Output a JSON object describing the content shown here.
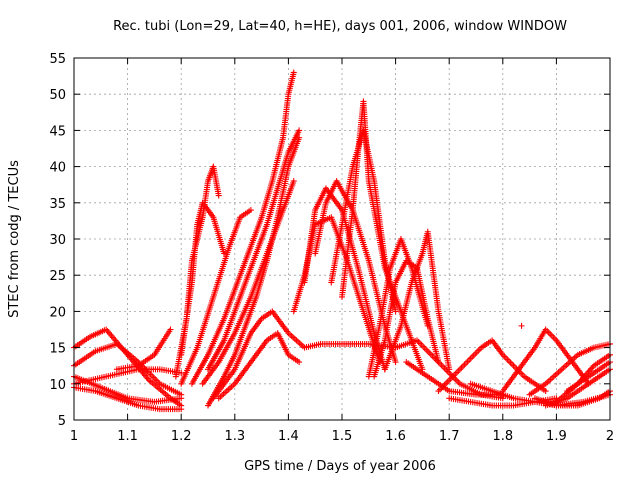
{
  "chart_data": {
    "type": "scatter",
    "title": "Rec. tubi (Lon=29, Lat=40, h=HE), days 001, 2006, window WINDOW",
    "xlabel": "GPS time / Days of year 2006",
    "ylabel": "STEC from codg / TECUs",
    "xlim": [
      1,
      2
    ],
    "ylim": [
      5,
      55
    ],
    "xticks": [
      "1",
      "1.1",
      "1.2",
      "1.3",
      "1.4",
      "1.5",
      "1.6",
      "1.7",
      "1.8",
      "1.9",
      "2"
    ],
    "yticks": [
      "5",
      "10",
      "15",
      "20",
      "25",
      "30",
      "35",
      "40",
      "45",
      "50",
      "55"
    ],
    "grid": true,
    "marker": "plus",
    "color": "#ff0000",
    "series": [
      {
        "x": [
          1.0,
          1.03,
          1.06,
          1.1,
          1.14,
          1.18,
          1.2
        ],
        "y": [
          15.0,
          16.5,
          17.5,
          14.0,
          10.5,
          8.0,
          7.0
        ]
      },
      {
        "x": [
          1.0,
          1.04,
          1.08,
          1.12,
          1.16,
          1.2
        ],
        "y": [
          12.5,
          14.5,
          15.5,
          13.0,
          10.0,
          8.5
        ]
      },
      {
        "x": [
          1.0,
          1.05,
          1.1,
          1.15,
          1.2
        ],
        "y": [
          11.0,
          9.5,
          8.0,
          7.5,
          8.0
        ]
      },
      {
        "x": [
          1.0,
          1.04,
          1.08,
          1.12,
          1.16,
          1.2
        ],
        "y": [
          9.5,
          9.0,
          8.0,
          7.0,
          6.5,
          6.5
        ]
      },
      {
        "x": [
          1.0,
          1.06,
          1.12,
          1.16,
          1.2
        ],
        "y": [
          10.0,
          11.0,
          12.0,
          12.0,
          11.5
        ]
      },
      {
        "x": [
          1.08,
          1.12,
          1.15,
          1.18
        ],
        "y": [
          12.0,
          12.5,
          14.0,
          17.5
        ]
      },
      {
        "x": [
          1.19,
          1.21,
          1.22,
          1.24,
          1.25,
          1.26,
          1.27
        ],
        "y": [
          11.0,
          19.0,
          27.0,
          33.0,
          38.0,
          40.0,
          36.0
        ]
      },
      {
        "x": [
          1.2,
          1.22,
          1.23,
          1.24,
          1.26,
          1.28
        ],
        "y": [
          14.0,
          24.0,
          32.0,
          35.0,
          33.0,
          28.0
        ]
      },
      {
        "x": [
          1.2,
          1.23,
          1.26,
          1.29,
          1.31,
          1.33
        ],
        "y": [
          10.0,
          15.0,
          22.0,
          29.0,
          33.0,
          34.0
        ]
      },
      {
        "x": [
          1.22,
          1.25,
          1.28,
          1.31,
          1.33,
          1.35,
          1.37,
          1.39,
          1.4,
          1.41
        ],
        "y": [
          10.0,
          14.0,
          19.0,
          25.0,
          29.0,
          33.0,
          38.0,
          44.0,
          50.0,
          53.0
        ]
      },
      {
        "x": [
          1.25,
          1.28,
          1.31,
          1.34,
          1.36,
          1.38,
          1.4,
          1.42
        ],
        "y": [
          12.0,
          16.0,
          22.0,
          28.0,
          32.0,
          37.0,
          42.0,
          45.0
        ]
      },
      {
        "x": [
          1.24,
          1.27,
          1.3,
          1.33,
          1.36,
          1.39,
          1.41
        ],
        "y": [
          10.0,
          13.0,
          17.0,
          22.0,
          28.0,
          34.0,
          38.0
        ]
      },
      {
        "x": [
          1.25,
          1.28,
          1.3,
          1.32,
          1.34,
          1.36,
          1.38,
          1.4,
          1.42
        ],
        "y": [
          7.0,
          11.0,
          14.0,
          18.0,
          22.0,
          27.0,
          33.0,
          40.0,
          44.0
        ]
      },
      {
        "x": [
          1.26,
          1.3,
          1.33,
          1.35,
          1.37,
          1.4,
          1.43,
          1.46,
          1.5,
          1.55,
          1.6
        ],
        "y": [
          8.0,
          12.0,
          17.0,
          19.0,
          20.0,
          17.0,
          15.0,
          15.5,
          15.5,
          15.5,
          15.0
        ]
      },
      {
        "x": [
          1.27,
          1.3,
          1.33,
          1.36,
          1.38,
          1.4,
          1.42
        ],
        "y": [
          8.0,
          10.0,
          13.0,
          16.0,
          17.0,
          14.0,
          13.0
        ]
      },
      {
        "x": [
          1.41,
          1.43,
          1.45,
          1.48,
          1.51,
          1.54,
          1.57
        ],
        "y": [
          20.0,
          25.0,
          32.0,
          33.0,
          27.0,
          20.0,
          13.0
        ]
      },
      {
        "x": [
          1.43,
          1.45,
          1.47,
          1.5,
          1.53,
          1.56,
          1.58
        ],
        "y": [
          24.0,
          34.0,
          37.0,
          34.0,
          26.0,
          17.0,
          12.0
        ]
      },
      {
        "x": [
          1.45,
          1.47,
          1.49,
          1.52,
          1.55,
          1.58,
          1.6
        ],
        "y": [
          28.0,
          35.0,
          38.0,
          34.0,
          27.0,
          18.0,
          13.0
        ]
      },
      {
        "x": [
          1.48,
          1.5,
          1.52,
          1.54,
          1.56,
          1.58,
          1.6
        ],
        "y": [
          24.0,
          32.0,
          40.0,
          45.0,
          38.0,
          27.0,
          20.0
        ]
      },
      {
        "x": [
          1.5,
          1.52,
          1.53,
          1.54,
          1.55,
          1.58,
          1.62,
          1.65
        ],
        "y": [
          22.0,
          34.0,
          42.0,
          49.0,
          38.0,
          26.0,
          18.0,
          12.0
        ]
      },
      {
        "x": [
          1.55,
          1.57,
          1.59,
          1.61,
          1.63,
          1.66
        ],
        "y": [
          11.0,
          18.0,
          26.0,
          30.0,
          26.0,
          18.0
        ]
      },
      {
        "x": [
          1.56,
          1.58,
          1.6,
          1.62,
          1.64,
          1.66,
          1.68
        ],
        "y": [
          11.0,
          16.0,
          24.0,
          27.0,
          26.0,
          19.0,
          13.0
        ]
      },
      {
        "x": [
          1.58,
          1.61,
          1.63,
          1.65,
          1.66,
          1.68,
          1.7
        ],
        "y": [
          12.0,
          18.0,
          24.0,
          28.0,
          31.0,
          20.0,
          12.0
        ]
      },
      {
        "x": [
          1.6,
          1.64,
          1.68,
          1.72,
          1.76,
          1.8
        ],
        "y": [
          15.0,
          16.0,
          13.0,
          10.0,
          8.5,
          8.0
        ]
      },
      {
        "x": [
          1.62,
          1.66,
          1.7,
          1.75,
          1.8
        ],
        "y": [
          13.0,
          11.0,
          9.0,
          8.5,
          8.5
        ]
      },
      {
        "x": [
          1.68,
          1.72,
          1.76,
          1.78,
          1.8,
          1.84,
          1.88
        ],
        "y": [
          9.0,
          12.0,
          15.0,
          16.0,
          14.0,
          11.0,
          9.0
        ]
      },
      {
        "x": [
          1.7,
          1.74,
          1.78,
          1.82,
          1.86,
          1.9
        ],
        "y": [
          8.0,
          7.5,
          7.0,
          7.0,
          7.5,
          8.0
        ]
      },
      {
        "x": [
          1.74,
          1.78,
          1.82,
          1.86,
          1.9,
          1.95,
          2.0
        ],
        "y": [
          10.0,
          9.0,
          8.0,
          7.5,
          7.0,
          7.5,
          8.5
        ]
      },
      {
        "x": [
          1.8,
          1.83,
          1.86,
          1.88,
          1.9,
          1.93,
          1.96
        ],
        "y": [
          9.0,
          12.0,
          15.0,
          17.5,
          16.0,
          13.0,
          10.0
        ]
      },
      {
        "x": [
          1.85,
          1.88,
          1.91,
          1.94,
          1.97,
          2.0
        ],
        "y": [
          8.5,
          10.0,
          12.0,
          14.0,
          15.0,
          15.5
        ]
      },
      {
        "x": [
          1.88,
          1.92,
          1.96,
          2.0
        ],
        "y": [
          7.0,
          8.0,
          10.0,
          12.0
        ]
      },
      {
        "x": [
          1.9,
          1.94,
          1.97,
          2.0
        ],
        "y": [
          7.5,
          10.0,
          12.5,
          14.0
        ]
      },
      {
        "x": [
          1.86,
          1.9,
          1.94,
          1.98,
          2.0
        ],
        "y": [
          8.0,
          7.0,
          7.0,
          8.0,
          9.0
        ]
      },
      {
        "x": [
          1.92,
          1.96,
          2.0
        ],
        "y": [
          9.0,
          11.0,
          13.0
        ]
      },
      {
        "x": [
          1.835
        ],
        "y": [
          18.0
        ]
      }
    ]
  }
}
